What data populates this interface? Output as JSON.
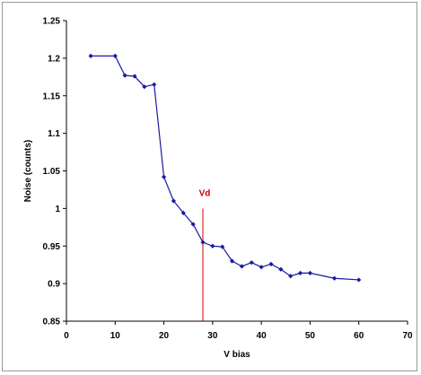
{
  "chart_data": {
    "type": "line",
    "title": "",
    "xlabel": "V bias",
    "ylabel": "Noise (counts)",
    "xlim": [
      0,
      70
    ],
    "ylim": [
      0.85,
      1.25
    ],
    "x_ticks": [
      0,
      10,
      20,
      30,
      40,
      50,
      60,
      70
    ],
    "y_ticks": [
      0.85,
      0.9,
      0.95,
      1,
      1.05,
      1.1,
      1.15,
      1.2,
      1.25
    ],
    "x_tick_labels": [
      "0",
      "10",
      "20",
      "30",
      "40",
      "50",
      "60",
      "70"
    ],
    "y_tick_labels": [
      "0.85",
      "0.9",
      "0.95",
      "1",
      "1.05",
      "1.1",
      "1.15",
      "1.2",
      "1.25"
    ],
    "grid": false,
    "legend": "none",
    "series": [
      {
        "color": "#1a1aa0",
        "x": [
          5,
          10,
          12,
          14,
          16,
          18,
          20,
          22,
          24,
          26,
          28,
          30,
          32,
          34,
          36,
          38,
          40,
          42,
          44,
          46,
          48,
          50,
          55,
          60
        ],
        "y": [
          1.203,
          1.203,
          1.177,
          1.176,
          1.162,
          1.165,
          1.042,
          1.01,
          0.994,
          0.979,
          0.955,
          0.95,
          0.949,
          0.93,
          0.923,
          0.928,
          0.922,
          0.926,
          0.919,
          0.91,
          0.914,
          0.914,
          0.907,
          0.905
        ]
      }
    ],
    "annotations": [
      {
        "label": "Vd",
        "x": 28,
        "y_from": 0.85,
        "y_to": 1.0,
        "color": "#cc0000"
      }
    ]
  }
}
